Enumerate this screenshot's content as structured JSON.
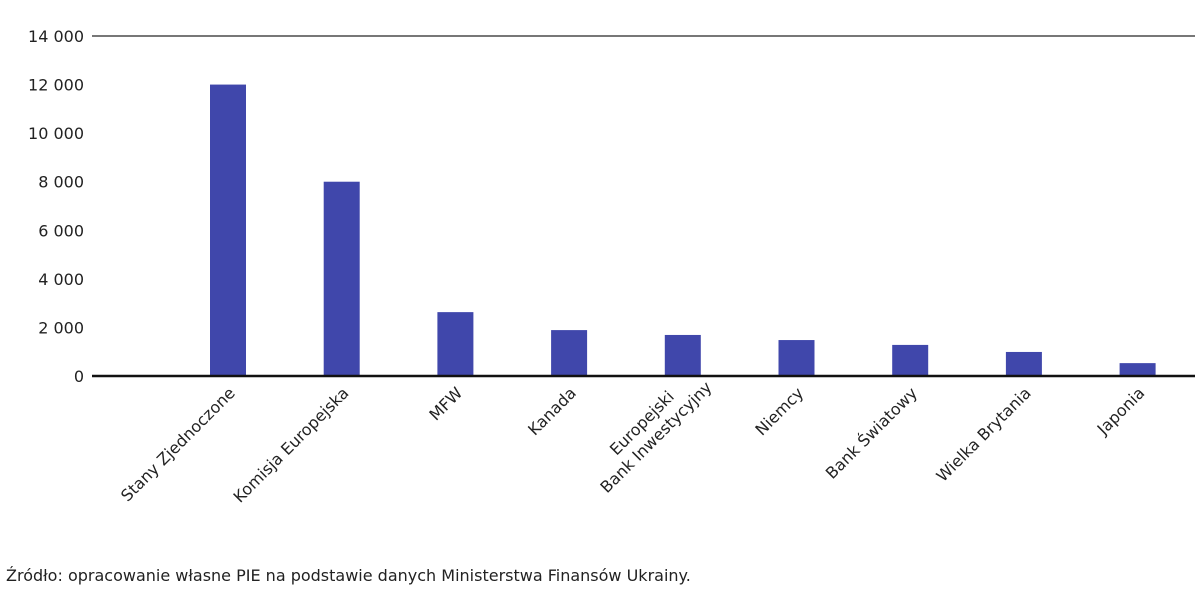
{
  "chart_data": {
    "type": "bar",
    "title": "",
    "xlabel": "",
    "ylabel": "",
    "ylim": [
      0,
      14000
    ],
    "yticks": [
      0,
      2000,
      4000,
      6000,
      8000,
      10000,
      12000,
      14000
    ],
    "ytick_labels": [
      "0",
      "2 000",
      "4 000",
      "6 000",
      "8 000",
      "10 000",
      "12 000",
      "14 000"
    ],
    "categories": [
      [
        "Stany Zjednoczone"
      ],
      [
        "Komisja Europejska"
      ],
      [
        "MFW"
      ],
      [
        "Kanada"
      ],
      [
        "Europejski",
        "Bank Inwestycyjny"
      ],
      [
        "Niemcy"
      ],
      [
        "Bank Światowy"
      ],
      [
        "Wielka Brytania"
      ],
      [
        "Japonia"
      ]
    ],
    "values": [
      12000,
      8000,
      2630,
      1890,
      1690,
      1480,
      1280,
      990,
      530
    ],
    "bar_color": "#4047ab",
    "grid": false
  },
  "source": "Źródło: opracowanie własne PIE na podstawie danych Ministerstwa Finansów Ukrainy."
}
